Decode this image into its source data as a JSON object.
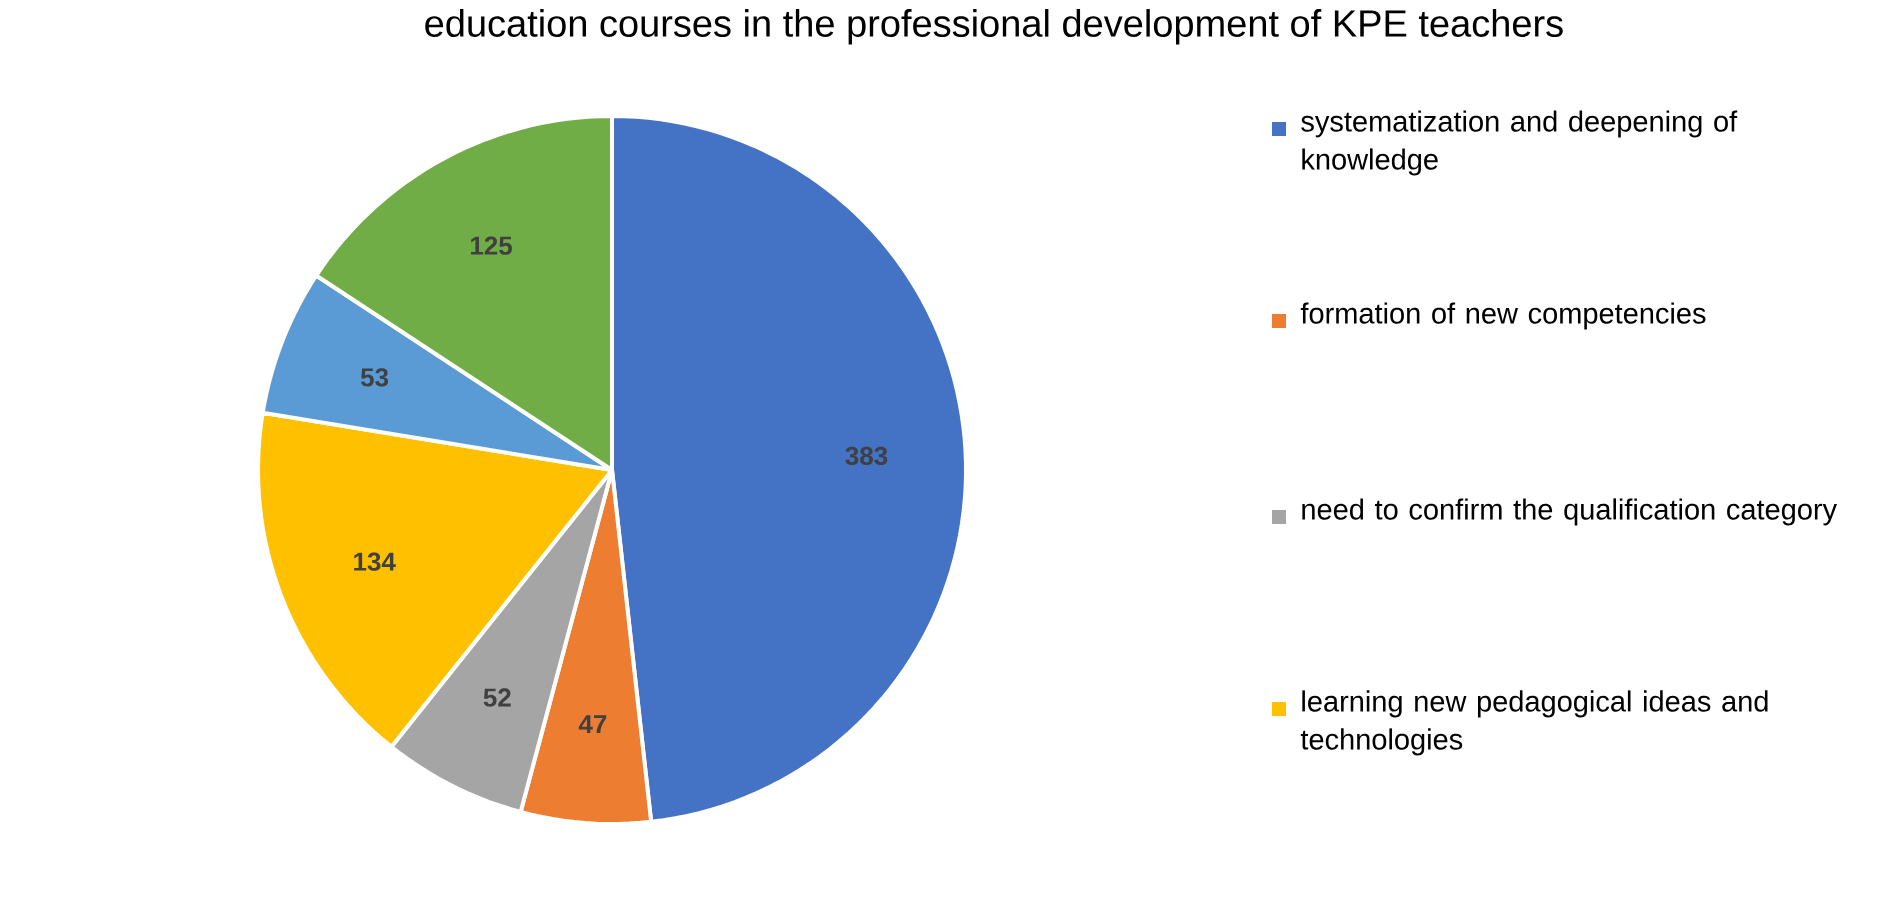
{
  "chart_data": {
    "type": "pie",
    "title": "education courses in the professional development of KPE teachers",
    "categories": [
      "systematization and deepening of knowledge",
      "formation of new competencies",
      "need to confirm the qualification category",
      "learning new pedagogical ideas and technologies",
      null,
      null
    ],
    "values": [
      383,
      47,
      52,
      134,
      53,
      125
    ],
    "colors": [
      "#4472c4",
      "#ed7d31",
      "#a5a5a5",
      "#ffc000",
      "#5b9bd5",
      "#70ad47"
    ],
    "data_labels": true,
    "legend": "right"
  }
}
